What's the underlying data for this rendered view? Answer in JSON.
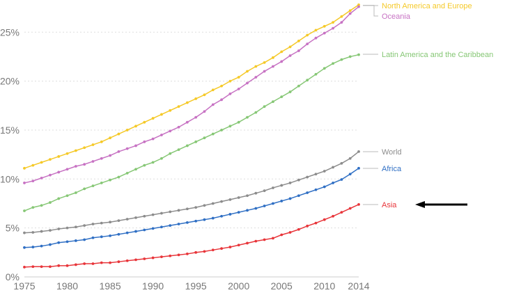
{
  "chart_data": {
    "type": "line",
    "title": "",
    "xlabel": "",
    "ylabel": "",
    "x": [
      1975,
      1976,
      1977,
      1978,
      1979,
      1980,
      1981,
      1982,
      1983,
      1984,
      1985,
      1986,
      1987,
      1988,
      1989,
      1990,
      1991,
      1992,
      1993,
      1994,
      1995,
      1996,
      1997,
      1998,
      1999,
      2000,
      2001,
      2002,
      2003,
      2004,
      2005,
      2006,
      2007,
      2008,
      2009,
      2010,
      2011,
      2012,
      2013,
      2014
    ],
    "xlim": [
      1975,
      2014
    ],
    "ylim": [
      0,
      27
    ],
    "x_ticks": [
      1975,
      1980,
      1985,
      1990,
      1995,
      2000,
      2005,
      2010,
      2014
    ],
    "x_tick_labels": [
      "1975",
      "1980",
      "1985",
      "1990",
      "1995",
      "2000",
      "2005",
      "2010",
      "2014"
    ],
    "y_ticks": [
      0,
      5,
      10,
      15,
      20,
      25
    ],
    "y_tick_labels": [
      "0%",
      "5%",
      "10%",
      "15%",
      "20%",
      "25%"
    ],
    "grid": true,
    "legend": "direct-labels-right",
    "series": [
      {
        "name": "North America and Europe",
        "color": "#f5c928",
        "values": [
          11.1,
          11.4,
          11.7,
          12.0,
          12.3,
          12.6,
          12.9,
          13.2,
          13.5,
          13.8,
          14.2,
          14.6,
          15.0,
          15.4,
          15.8,
          16.2,
          16.6,
          17.0,
          17.4,
          17.8,
          18.2,
          18.6,
          19.1,
          19.5,
          20.0,
          20.4,
          21.0,
          21.5,
          21.9,
          22.4,
          23.0,
          23.5,
          24.1,
          24.7,
          25.2,
          25.6,
          26.0,
          26.6,
          27.2,
          27.8
        ]
      },
      {
        "name": "Oceania",
        "color": "#c772c3",
        "values": [
          9.6,
          9.8,
          10.1,
          10.4,
          10.7,
          11.0,
          11.3,
          11.5,
          11.8,
          12.1,
          12.4,
          12.8,
          13.1,
          13.4,
          13.8,
          14.1,
          14.5,
          14.9,
          15.3,
          15.8,
          16.3,
          16.9,
          17.6,
          18.1,
          18.7,
          19.2,
          19.8,
          20.4,
          21.0,
          21.5,
          22.0,
          22.6,
          23.1,
          23.8,
          24.4,
          24.9,
          25.4,
          26.0,
          26.9,
          27.6
        ]
      },
      {
        "name": "Latin America and the Caribbean",
        "color": "#86c775",
        "values": [
          6.75,
          7.1,
          7.3,
          7.6,
          8.0,
          8.3,
          8.6,
          9.0,
          9.3,
          9.6,
          9.9,
          10.2,
          10.6,
          11.0,
          11.4,
          11.7,
          12.1,
          12.6,
          13.0,
          13.4,
          13.8,
          14.2,
          14.6,
          15.0,
          15.4,
          15.8,
          16.3,
          16.8,
          17.4,
          17.9,
          18.4,
          18.9,
          19.5,
          20.1,
          20.7,
          21.3,
          21.8,
          22.2,
          22.5,
          22.7
        ]
      },
      {
        "name": "World",
        "color": "#8c8c8c",
        "values": [
          4.5,
          4.55,
          4.65,
          4.75,
          4.9,
          5.0,
          5.1,
          5.25,
          5.4,
          5.5,
          5.6,
          5.75,
          5.9,
          6.05,
          6.2,
          6.35,
          6.5,
          6.65,
          6.8,
          6.95,
          7.1,
          7.3,
          7.5,
          7.7,
          7.9,
          8.1,
          8.3,
          8.55,
          8.8,
          9.1,
          9.35,
          9.6,
          9.9,
          10.2,
          10.5,
          10.8,
          11.2,
          11.6,
          12.1,
          12.8
        ]
      },
      {
        "name": "Africa",
        "color": "#2f6fc4",
        "values": [
          3.0,
          3.05,
          3.15,
          3.3,
          3.5,
          3.6,
          3.7,
          3.8,
          4.0,
          4.1,
          4.2,
          4.35,
          4.5,
          4.65,
          4.8,
          4.95,
          5.1,
          5.25,
          5.4,
          5.55,
          5.7,
          5.85,
          6.0,
          6.2,
          6.4,
          6.6,
          6.8,
          7.0,
          7.25,
          7.5,
          7.75,
          8.0,
          8.3,
          8.6,
          8.9,
          9.2,
          9.6,
          9.95,
          10.5,
          11.1
        ]
      },
      {
        "name": "Asia",
        "color": "#e8353a",
        "values": [
          1.0,
          1.05,
          1.05,
          1.05,
          1.15,
          1.15,
          1.25,
          1.35,
          1.35,
          1.45,
          1.45,
          1.55,
          1.65,
          1.75,
          1.85,
          1.95,
          2.05,
          2.15,
          2.25,
          2.35,
          2.5,
          2.6,
          2.75,
          2.9,
          3.05,
          3.25,
          3.45,
          3.65,
          3.8,
          3.95,
          4.3,
          4.55,
          4.85,
          5.2,
          5.5,
          5.85,
          6.2,
          6.6,
          7.0,
          7.4
        ]
      }
    ],
    "annotations": [
      {
        "type": "arrow",
        "points_to": "Asia",
        "direction": "left",
        "color": "#000000"
      }
    ]
  }
}
